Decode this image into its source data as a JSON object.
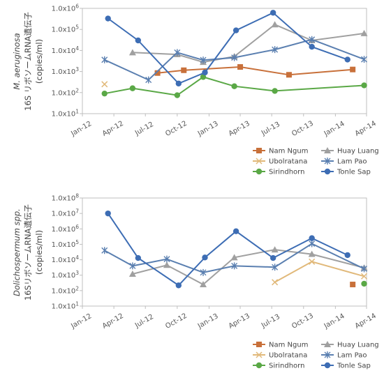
{
  "colors": {
    "nam_ngum": "#c8703a",
    "huay_luang": "#a0a0a0",
    "ubolratana": "#e1b97a",
    "lam_pao": "#5a7fb0",
    "sirindhorn": "#5aa846",
    "tonle_sap": "#3d6db4",
    "axis": "#bfbfbf",
    "text": "#555555"
  },
  "chart_data": [
    {
      "type": "line",
      "ylabel": [
        "M. aeruginosa",
        "16S リボソームRNA遺伝子",
        "(copies/ml)"
      ],
      "yscale": "log",
      "ylim": [
        10,
        1000000
      ],
      "yticks": [
        {
          "value": 10,
          "label": "1.0x10",
          "exp": "1"
        },
        {
          "value": 100,
          "label": "1.0x10",
          "exp": "2"
        },
        {
          "value": 1000,
          "label": "1.0x10",
          "exp": "3"
        },
        {
          "value": 10000,
          "label": "1.0x10",
          "exp": "4"
        },
        {
          "value": 100000,
          "label": "1.0x10",
          "exp": "5"
        },
        {
          "value": 1000000,
          "label": "1.0x10",
          "exp": "6"
        }
      ],
      "xlim": [
        "2012-01-01",
        "2014-04-01"
      ],
      "xticks": [
        {
          "date": "2012-01-01",
          "label": "Jan-12"
        },
        {
          "date": "2012-04-01",
          "label": "Apr-12"
        },
        {
          "date": "2012-07-01",
          "label": "Jul-12"
        },
        {
          "date": "2012-10-01",
          "label": "Oct-12"
        },
        {
          "date": "2013-01-01",
          "label": "Jan-13"
        },
        {
          "date": "2013-04-01",
          "label": "Apr-13"
        },
        {
          "date": "2013-07-01",
          "label": "Jul-13"
        },
        {
          "date": "2013-10-01",
          "label": "Oct-13"
        },
        {
          "date": "2014-01-01",
          "label": "Jan-14"
        },
        {
          "date": "2014-04-01",
          "label": "Apr-14"
        }
      ],
      "series": [
        {
          "name": "Nam Ngum",
          "color": "nam_ngum",
          "marker": "square",
          "points": [
            [
              "2012-08-05",
              850
            ],
            [
              "2012-10-20",
              1150
            ],
            [
              "2013-04-01",
              1650
            ],
            [
              "2013-08-20",
              700
            ],
            [
              "2014-02-20",
              1250
            ]
          ]
        },
        {
          "name": "Huay Luang",
          "color": "huay_luang",
          "marker": "triangle",
          "points": [
            [
              "2012-05-25",
              8000
            ],
            [
              "2012-10-01",
              6500
            ],
            [
              "2012-12-15",
              2800
            ],
            [
              "2013-03-15",
              5200
            ],
            [
              "2013-07-10",
              170000
            ],
            [
              "2013-10-25",
              30000
            ],
            [
              "2014-03-25",
              65000
            ]
          ]
        },
        {
          "name": "Ubolratana",
          "color": "ubolratana",
          "marker": "x",
          "points": [
            [
              "2012-03-05",
              250
            ]
          ]
        },
        {
          "name": "Lam Pao",
          "color": "lam_pao",
          "marker": "star",
          "points": [
            [
              "2012-03-05",
              3600
            ],
            [
              "2012-07-10",
              400
            ],
            [
              "2012-10-01",
              8000
            ],
            [
              "2012-12-15",
              3500
            ],
            [
              "2013-03-15",
              4600
            ],
            [
              "2013-07-10",
              11000
            ],
            [
              "2013-10-25",
              33000
            ],
            [
              "2014-03-25",
              3800
            ]
          ]
        },
        {
          "name": "Sirindhorn",
          "color": "sirindhorn",
          "marker": "circle",
          "points": [
            [
              "2012-03-05",
              90
            ],
            [
              "2012-05-25",
              160
            ],
            [
              "2012-10-01",
              75
            ],
            [
              "2012-12-15",
              550
            ],
            [
              "2013-03-15",
              200
            ],
            [
              "2013-07-10",
              120
            ],
            [
              "2014-03-25",
              220
            ]
          ]
        },
        {
          "name": "Tonle Sap",
          "color": "tonle_sap",
          "marker": "circle",
          "points": [
            [
              "2012-03-15",
              330000
            ],
            [
              "2012-06-10",
              30000
            ],
            [
              "2012-10-05",
              270
            ],
            [
              "2012-12-20",
              900
            ],
            [
              "2013-03-20",
              90000
            ],
            [
              "2013-07-05",
              620000
            ],
            [
              "2013-10-25",
              15000
            ],
            [
              "2014-02-05",
              3700
            ]
          ]
        }
      ],
      "legend": {
        "position": "bottom-right"
      }
    },
    {
      "type": "line",
      "ylabel": [
        "Dolichospermum spp.",
        "16SリボソームRNA遺伝子",
        "(copies/ml)"
      ],
      "yscale": "log",
      "ylim": [
        10,
        100000000
      ],
      "yticks": [
        {
          "value": 10,
          "label": "1.0x10",
          "exp": "1"
        },
        {
          "value": 100,
          "label": "1.0x10",
          "exp": "2"
        },
        {
          "value": 1000,
          "label": "1.0x10",
          "exp": "3"
        },
        {
          "value": 10000,
          "label": "1.0x10",
          "exp": "4"
        },
        {
          "value": 100000,
          "label": "1.0x10",
          "exp": "5"
        },
        {
          "value": 1000000,
          "label": "1.0x10",
          "exp": "6"
        },
        {
          "value": 10000000,
          "label": "1.0x10",
          "exp": "7"
        },
        {
          "value": 100000000,
          "label": "1.0x10",
          "exp": "8"
        }
      ],
      "xlim": [
        "2012-01-01",
        "2014-04-01"
      ],
      "xticks": [
        {
          "date": "2012-01-01",
          "label": "Jan-12"
        },
        {
          "date": "2012-04-01",
          "label": "Apr-12"
        },
        {
          "date": "2012-07-01",
          "label": "Jul-12"
        },
        {
          "date": "2012-10-01",
          "label": "Oct-12"
        },
        {
          "date": "2013-01-01",
          "label": "Jan-13"
        },
        {
          "date": "2013-04-01",
          "label": "Apr-13"
        },
        {
          "date": "2013-07-01",
          "label": "Jul-13"
        },
        {
          "date": "2013-10-01",
          "label": "Oct-13"
        },
        {
          "date": "2014-01-01",
          "label": "Jan-14"
        },
        {
          "date": "2014-04-01",
          "label": "Apr-14"
        }
      ],
      "series": [
        {
          "name": "Nam Ngum",
          "color": "nam_ngum",
          "marker": "square",
          "points": [
            [
              "2014-02-20",
              250
            ]
          ]
        },
        {
          "name": "Huay Luang",
          "color": "huay_luang",
          "marker": "triangle",
          "points": [
            [
              "2012-05-25",
              1200
            ],
            [
              "2012-09-01",
              4500
            ],
            [
              "2012-12-15",
              250
            ],
            [
              "2013-03-15",
              14000
            ],
            [
              "2013-07-10",
              45000
            ],
            [
              "2013-10-25",
              23000
            ],
            [
              "2014-03-25",
              3000
            ]
          ]
        },
        {
          "name": "Ubolratana",
          "color": "ubolratana",
          "marker": "x",
          "points": [
            [
              "2013-07-10",
              350
            ],
            [
              "2013-10-25",
              7500
            ],
            [
              "2014-03-25",
              850
            ]
          ]
        },
        {
          "name": "Lam Pao",
          "color": "lam_pao",
          "marker": "star",
          "points": [
            [
              "2012-03-05",
              40000
            ],
            [
              "2012-05-25",
              4000
            ],
            [
              "2012-09-01",
              11000
            ],
            [
              "2012-12-15",
              1500
            ],
            [
              "2013-03-15",
              4000
            ],
            [
              "2013-07-10",
              3300
            ],
            [
              "2013-10-25",
              110000
            ],
            [
              "2014-03-25",
              2600
            ]
          ]
        },
        {
          "name": "Sirindhorn",
          "color": "sirindhorn",
          "marker": "circle",
          "points": [
            [
              "2014-03-25",
              280
            ]
          ]
        },
        {
          "name": "Tonle Sap",
          "color": "tonle_sap",
          "marker": "circle",
          "points": [
            [
              "2012-03-15",
              10000000
            ],
            [
              "2012-06-10",
              13000
            ],
            [
              "2012-10-05",
              220
            ],
            [
              "2012-12-20",
              14000
            ],
            [
              "2013-03-20",
              700000
            ],
            [
              "2013-07-05",
              13000
            ],
            [
              "2013-10-25",
              250000
            ],
            [
              "2014-02-05",
              20000
            ]
          ]
        }
      ],
      "legend": {
        "position": "bottom-right"
      }
    }
  ]
}
